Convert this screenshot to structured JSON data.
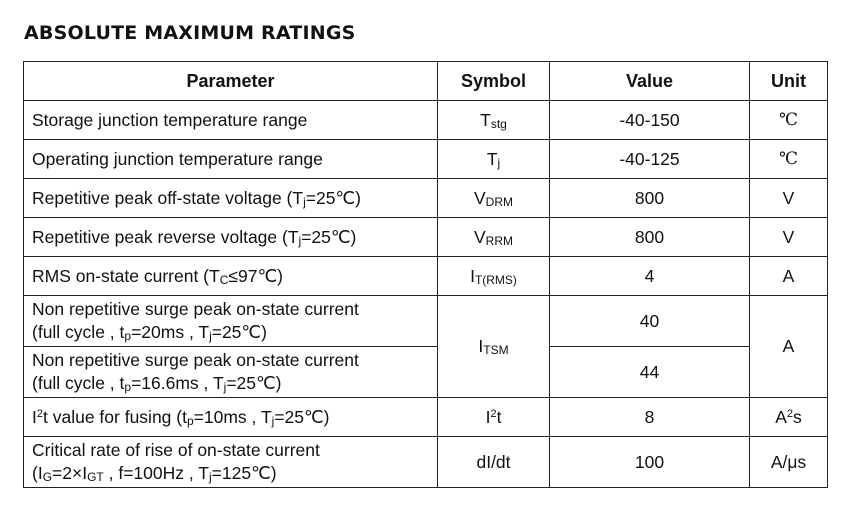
{
  "title": "ABSOLUTE MAXIMUM RATINGS",
  "headers": {
    "parameter": "Parameter",
    "symbol": "Symbol",
    "value": "Value",
    "unit": "Unit"
  },
  "rows": [
    {
      "parameter": "Storage junction temperature range",
      "symbol_main": "T",
      "symbol_sub": "stg",
      "value": "-40-150",
      "unit": "℃"
    },
    {
      "parameter": "Operating junction temperature range",
      "symbol_main": "T",
      "symbol_sub": "j",
      "value": "-40-125",
      "unit": "℃"
    },
    {
      "parameter_a": "Repetitive peak off-state voltage (T",
      "parameter_sub": "j",
      "parameter_b": "=25℃)",
      "symbol_main": "V",
      "symbol_sub": "DRM",
      "value": "800",
      "unit": "V"
    },
    {
      "parameter_a": "Repetitive peak reverse voltage (T",
      "parameter_sub": "j",
      "parameter_b": "=25℃)",
      "symbol_main": "V",
      "symbol_sub": "RRM",
      "value": "800",
      "unit": "V"
    },
    {
      "parameter_a": "RMS on-state current (T",
      "parameter_sub": "C",
      "parameter_b": "≤97℃)",
      "symbol_main": "I",
      "symbol_sub": "T(RMS)",
      "value": "4",
      "unit": "A"
    },
    {
      "line1": "Non repetitive surge peak on-state current",
      "l2a": "(full cycle , t",
      "l2sub1": "p",
      "l2b": "=20ms , T",
      "l2sub2": "j",
      "l2c": "=25℃)",
      "value": "40"
    },
    {
      "line1": "Non repetitive surge peak on-state current",
      "l2a": "(full cycle , t",
      "l2sub1": "p",
      "l2b": "=16.6ms , T",
      "l2sub2": "j",
      "l2c": "=25℃)",
      "value": "44"
    },
    {
      "p_a": "I",
      "p_sup": "2",
      "p_b": "t value for fusing (t",
      "p_sub1": "p",
      "p_c": "=10ms , T",
      "p_sub2": "j",
      "p_d": "=25℃)",
      "symbol_main": "I",
      "symbol_sup": "2",
      "symbol_tail": "t",
      "value": "8",
      "unit_main": "A",
      "unit_sup": "2",
      "unit_tail": "s"
    },
    {
      "line1": "Critical rate of rise of on-state current",
      "l2a": "(I",
      "l2sub1": "G",
      "l2b": "=2×I",
      "l2sub2": "GT",
      "l2c": " , f=100Hz , T",
      "l2sub3": "j",
      "l2d": "=125℃)",
      "symbol": "dI/dt",
      "value": "100",
      "unit": "A/μs"
    }
  ],
  "surge": {
    "symbol_main": "I",
    "symbol_sub": "TSM",
    "unit": "A"
  }
}
